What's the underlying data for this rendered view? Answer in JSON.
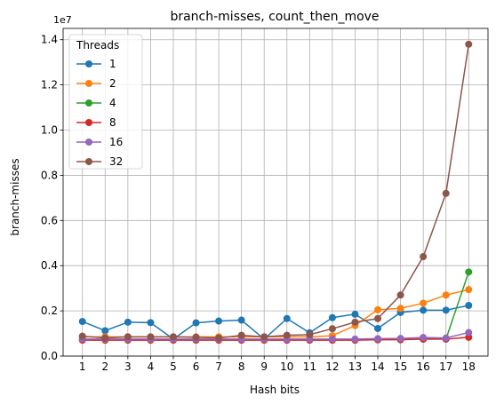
{
  "chart_data": {
    "type": "line",
    "title": "branch-misses, count_then_move",
    "xlabel": "Hash bits",
    "ylabel": "branch-misses",
    "exponent_label": "1e7",
    "x": [
      1,
      2,
      3,
      4,
      5,
      6,
      7,
      8,
      9,
      10,
      11,
      12,
      13,
      14,
      15,
      16,
      17,
      18
    ],
    "xlim": [
      0.15,
      18.85
    ],
    "ylim": [
      0,
      1.45
    ],
    "y_ticks": [
      0.0,
      0.2,
      0.4,
      0.6,
      0.8,
      1.0,
      1.2,
      1.4
    ],
    "y_tick_labels": [
      "0.0",
      "0.2",
      "0.4",
      "0.6",
      "0.8",
      "1.0",
      "1.2",
      "1.4"
    ],
    "y_scale": 10000000,
    "grid": true,
    "legend": {
      "title": "Threads",
      "position": "top-left"
    },
    "series": [
      {
        "name": "1",
        "color": "#1f77b4",
        "values": [
          0.153,
          0.112,
          0.15,
          0.148,
          0.075,
          0.147,
          0.155,
          0.159,
          0.075,
          0.166,
          0.103,
          0.17,
          0.185,
          0.122,
          0.193,
          0.203,
          0.203,
          0.224
        ]
      },
      {
        "name": "2",
        "color": "#ff7f0e",
        "values": [
          0.085,
          0.085,
          0.085,
          0.085,
          0.085,
          0.085,
          0.085,
          0.085,
          0.085,
          0.085,
          0.085,
          0.09,
          0.135,
          0.205,
          0.211,
          0.234,
          0.27,
          0.294
        ]
      },
      {
        "name": "4",
        "color": "#2ca02c",
        "values": [
          0.072,
          0.072,
          0.072,
          0.072,
          0.072,
          0.072,
          0.072,
          0.072,
          0.072,
          0.072,
          0.072,
          0.072,
          0.072,
          0.072,
          0.075,
          0.075,
          0.075,
          0.372
        ]
      },
      {
        "name": "8",
        "color": "#d62728",
        "values": [
          0.07,
          0.07,
          0.07,
          0.07,
          0.07,
          0.07,
          0.07,
          0.07,
          0.07,
          0.07,
          0.07,
          0.07,
          0.07,
          0.072,
          0.072,
          0.075,
          0.075,
          0.083
        ]
      },
      {
        "name": "16",
        "color": "#9467bd",
        "values": [
          0.075,
          0.075,
          0.075,
          0.075,
          0.075,
          0.075,
          0.075,
          0.075,
          0.075,
          0.075,
          0.075,
          0.075,
          0.075,
          0.077,
          0.078,
          0.082,
          0.08,
          0.104
        ]
      },
      {
        "name": "32",
        "color": "#8c564b",
        "values": [
          0.088,
          0.08,
          0.085,
          0.085,
          0.085,
          0.083,
          0.08,
          0.092,
          0.085,
          0.092,
          0.095,
          0.121,
          0.15,
          0.166,
          0.27,
          0.44,
          0.72,
          1.38
        ]
      }
    ]
  }
}
